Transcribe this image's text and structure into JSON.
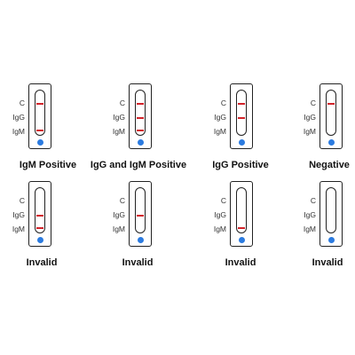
{
  "line_labels": {
    "c": "C",
    "igg": "IgG",
    "igm": "IgM"
  },
  "colors": {
    "band": "#d2232a",
    "sample_well": "#2b7be0",
    "outline": "#222222"
  },
  "tests": [
    {
      "result": "IgM Positive",
      "bands": {
        "c": true,
        "igg": false,
        "igm": true
      }
    },
    {
      "result": "IgG and IgM Positive",
      "bands": {
        "c": true,
        "igg": true,
        "igm": true
      }
    },
    {
      "result": "IgG Positive",
      "bands": {
        "c": true,
        "igg": true,
        "igm": false
      }
    },
    {
      "result": "Negative",
      "bands": {
        "c": true,
        "igg": false,
        "igm": false
      }
    },
    {
      "result": "Invalid",
      "bands": {
        "c": false,
        "igg": true,
        "igm": true
      }
    },
    {
      "result": "Invalid",
      "bands": {
        "c": false,
        "igg": true,
        "igm": false
      }
    },
    {
      "result": "Invalid",
      "bands": {
        "c": false,
        "igg": false,
        "igm": true
      }
    },
    {
      "result": "Invalid",
      "bands": {
        "c": false,
        "igg": false,
        "igm": false
      }
    }
  ]
}
